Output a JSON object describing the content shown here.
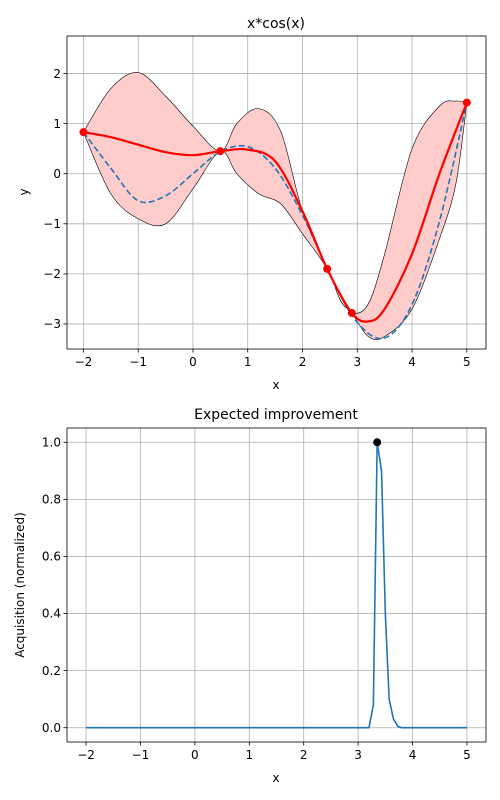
{
  "chart_data": [
    {
      "type": "line",
      "title": "x*cos(x)",
      "xlabel": "x",
      "ylabel": "y",
      "xlim": [
        -2.3,
        5.35
      ],
      "ylim": [
        -3.5,
        2.75
      ],
      "xticks": [
        -2,
        -1,
        0,
        1,
        2,
        3,
        4,
        5
      ],
      "yticks": [
        -3,
        -2,
        -1,
        0,
        1,
        2
      ],
      "grid": true,
      "colors": {
        "mean": "#ff0000",
        "truth": "#1f77b4",
        "band": "#ffcccc",
        "observations": "#ff0000"
      },
      "series": [
        {
          "role": "true-function",
          "x": [
            -2.0,
            -1.5,
            -1.0,
            -0.5,
            0.0,
            0.5,
            1.0,
            1.5,
            2.0,
            2.5,
            3.0,
            3.5,
            4.0,
            4.5,
            5.0
          ],
          "y": [
            0.83,
            0.11,
            -0.54,
            -0.44,
            0.0,
            0.44,
            0.54,
            0.11,
            -0.83,
            -2.0,
            -2.97,
            -3.28,
            -2.61,
            -0.95,
            1.42
          ]
        },
        {
          "role": "predicted-mean",
          "x": [
            -2.0,
            -1.5,
            -1.0,
            -0.5,
            0.0,
            0.5,
            1.0,
            1.5,
            2.0,
            2.45,
            2.9,
            3.2,
            3.5,
            4.0,
            4.5,
            5.0
          ],
          "y": [
            0.83,
            0.73,
            0.58,
            0.43,
            0.37,
            0.45,
            0.48,
            0.25,
            -0.75,
            -1.9,
            -2.78,
            -2.95,
            -2.7,
            -1.6,
            0.0,
            1.42
          ]
        }
      ],
      "confidence_band": {
        "x": [
          -2.0,
          -1.5,
          -1.0,
          -0.5,
          0.0,
          0.5,
          0.8,
          1.2,
          1.6,
          2.0,
          2.45,
          2.7,
          2.9,
          3.2,
          3.5,
          4.0,
          4.5,
          4.8,
          5.0
        ],
        "lower": [
          0.83,
          -0.4,
          -0.9,
          -1.0,
          -0.3,
          0.45,
          0.0,
          -0.4,
          -0.6,
          -1.2,
          -1.9,
          -2.55,
          -2.78,
          -3.25,
          -3.25,
          -2.7,
          -1.3,
          -0.2,
          1.42
        ],
        "upper": [
          0.83,
          1.7,
          2.02,
          1.55,
          0.95,
          0.45,
          1.0,
          1.3,
          0.85,
          -0.75,
          -1.9,
          -2.45,
          -2.78,
          -2.6,
          -1.6,
          0.5,
          1.35,
          1.45,
          1.42
        ]
      },
      "observations": {
        "x": [
          -2.0,
          0.5,
          2.45,
          2.9,
          5.0
        ],
        "y": [
          0.83,
          0.45,
          -1.9,
          -2.78,
          1.42
        ]
      }
    },
    {
      "type": "line",
      "title": "Expected improvement",
      "xlabel": "x",
      "ylabel": "Acquisition (normalized)",
      "xlim": [
        -2.35,
        5.35
      ],
      "ylim": [
        -0.05,
        1.05
      ],
      "xticks": [
        -2,
        -1,
        0,
        1,
        2,
        3,
        4,
        5
      ],
      "yticks": [
        0.0,
        0.2,
        0.4,
        0.6,
        0.8,
        1.0
      ],
      "grid": true,
      "colors": {
        "line": "#1f77b4",
        "maximum": "#000000"
      },
      "series": [
        {
          "role": "acquisition",
          "x": [
            -2.0,
            3.2,
            3.28,
            3.35,
            3.43,
            3.5,
            3.57,
            3.65,
            3.73,
            3.8,
            4.0,
            5.0
          ],
          "y": [
            0.0,
            0.0,
            0.08,
            1.0,
            0.9,
            0.4,
            0.1,
            0.03,
            0.005,
            0.0,
            0.0,
            0.0
          ]
        }
      ],
      "maximum_point": {
        "x": 3.35,
        "y": 1.0
      }
    }
  ]
}
